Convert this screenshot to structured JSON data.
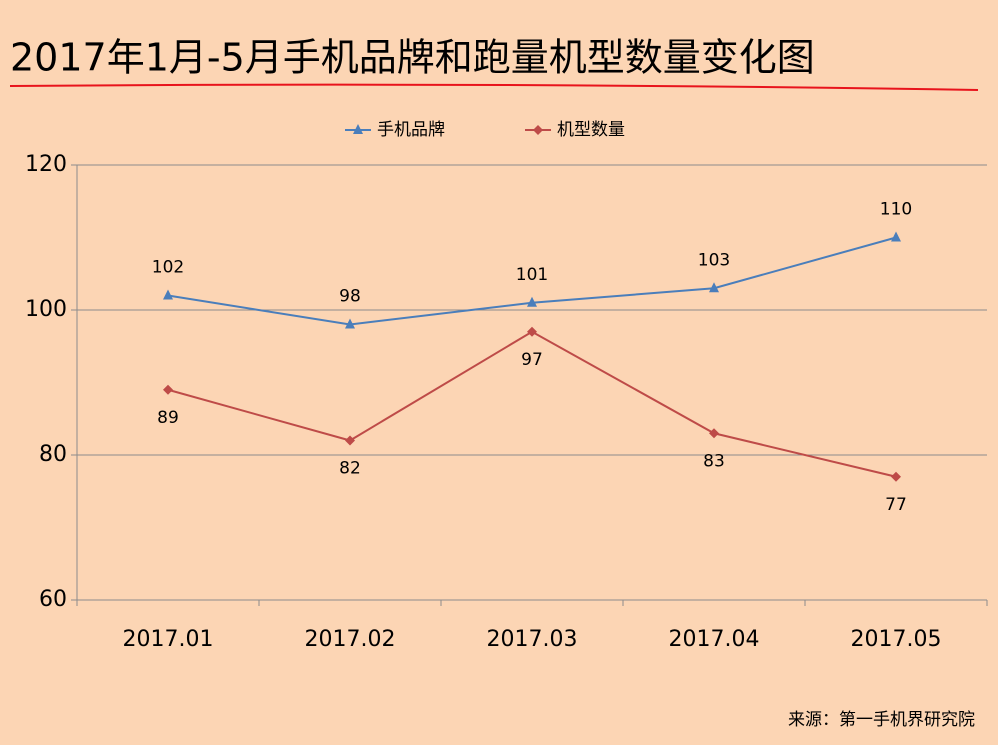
{
  "chart_data": {
    "type": "line",
    "title": "2017年1月-5月手机品牌和跑量机型数量变化图",
    "categories": [
      "2017.01",
      "2017.02",
      "2017.03",
      "2017.04",
      "2017.05"
    ],
    "series": [
      {
        "name": "手机品牌",
        "color": "#4a7ebb",
        "marker": "triangle",
        "values": [
          102,
          98,
          101,
          103,
          110
        ]
      },
      {
        "name": "机型数量",
        "color": "#be4b48",
        "marker": "diamond",
        "values": [
          89,
          82,
          97,
          83,
          77
        ]
      }
    ],
    "ylim": [
      60,
      120
    ],
    "yticks": [
      60,
      80,
      100,
      120
    ],
    "grid": true,
    "legend": "top",
    "source": "来源：第一手机界研究院"
  }
}
